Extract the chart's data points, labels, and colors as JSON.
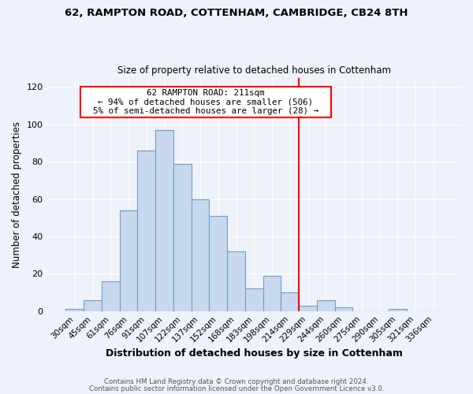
{
  "title1": "62, RAMPTON ROAD, COTTENHAM, CAMBRIDGE, CB24 8TH",
  "title2": "Size of property relative to detached houses in Cottenham",
  "xlabel": "Distribution of detached houses by size in Cottenham",
  "ylabel": "Number of detached properties",
  "bar_labels": [
    "30sqm",
    "45sqm",
    "61sqm",
    "76sqm",
    "91sqm",
    "107sqm",
    "122sqm",
    "137sqm",
    "152sqm",
    "168sqm",
    "183sqm",
    "198sqm",
    "214sqm",
    "229sqm",
    "244sqm",
    "260sqm",
    "275sqm",
    "290sqm",
    "305sqm",
    "321sqm",
    "336sqm"
  ],
  "bar_values": [
    1,
    6,
    16,
    54,
    86,
    97,
    79,
    60,
    51,
    32,
    12,
    19,
    10,
    3,
    6,
    2,
    0,
    0,
    1,
    0,
    0
  ],
  "bar_color": "#c9d9ed",
  "bar_edge_color": "#6a9fc8",
  "vline_color": "red",
  "vline_label_idx": 12,
  "annotation_title": "62 RAMPTON ROAD: 211sqm",
  "annotation_line1": "← 94% of detached houses are smaller (506)",
  "annotation_line2": "5% of semi-detached houses are larger (28) →",
  "annotation_box_color": "#ffffff",
  "annotation_box_edge_color": "red",
  "ylim": [
    0,
    125
  ],
  "yticks": [
    0,
    20,
    40,
    60,
    80,
    100,
    120
  ],
  "footer1": "Contains HM Land Registry data © Crown copyright and database right 2024.",
  "footer2": "Contains public sector information licensed under the Open Government Licence v3.0.",
  "background_color": "#eef2fa",
  "grid_color": "#ffffff"
}
